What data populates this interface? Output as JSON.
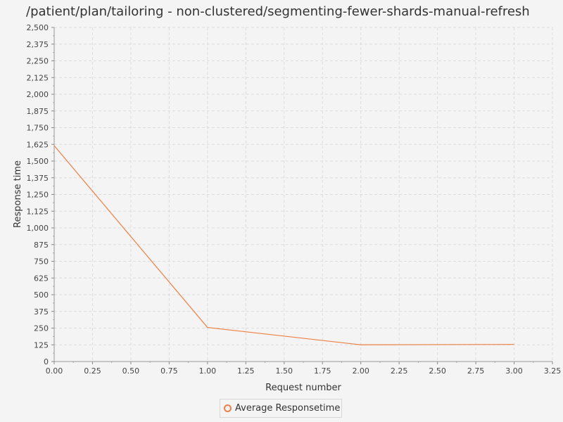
{
  "title": "/patient/plan/tailoring - non-clustered/segmenting-fewer-shards-manual-refresh",
  "chart_data": {
    "type": "line",
    "xlabel": "Request number",
    "ylabel": "Response time",
    "xlim": [
      0,
      3.25
    ],
    "ylim": [
      0,
      2500
    ],
    "x_ticks": [
      "0.00",
      "0.25",
      "0.50",
      "0.75",
      "1.00",
      "1.25",
      "1.50",
      "1.75",
      "2.00",
      "2.25",
      "2.50",
      "2.75",
      "3.00",
      "3.25"
    ],
    "y_ticks": [
      "0",
      "125",
      "250",
      "375",
      "500",
      "625",
      "750",
      "875",
      "1,000",
      "1,125",
      "1,250",
      "1,375",
      "1,500",
      "1,625",
      "1,750",
      "1,875",
      "2,000",
      "2,125",
      "2,250",
      "2,375",
      "2,500"
    ],
    "grid": true,
    "legend_position": "bottom",
    "series": [
      {
        "name": "Average Responsetime",
        "color": "#ee7f46",
        "x": [
          0,
          1,
          2,
          3
        ],
        "y": [
          1615,
          255,
          125,
          128
        ]
      }
    ]
  }
}
